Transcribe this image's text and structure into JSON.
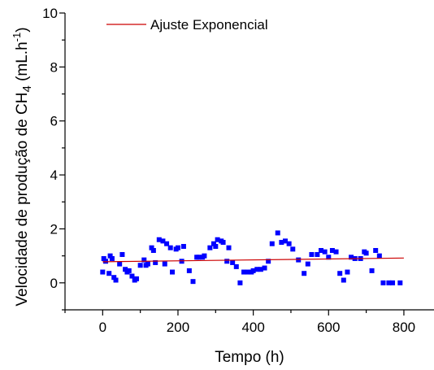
{
  "chart_data": {
    "type": "scatter",
    "xlabel": "Tempo (h)",
    "ylabel": {
      "prefix": "Velocidade de produção de CH",
      "sub": "4",
      "unit": " (mL.h",
      "sup": "-1",
      "close": ")"
    },
    "xlim": [
      -100,
      880
    ],
    "ylim": [
      -1,
      10
    ],
    "x_ticks": [
      0,
      200,
      400,
      600,
      800
    ],
    "y_ticks": [
      0,
      2,
      4,
      6,
      8,
      10
    ],
    "grid": false,
    "legend": {
      "position": "top-left",
      "entries": [
        "Ajuste Exponencial"
      ]
    },
    "colors": {
      "points": "#0000ff",
      "fit": "#cc0000",
      "axis": "#000000"
    },
    "series": [
      {
        "kind": "points",
        "x": [
          0,
          3,
          8,
          17,
          20,
          25,
          30,
          35,
          45,
          52,
          60,
          65,
          70,
          78,
          85,
          90,
          100,
          110,
          115,
          120,
          130,
          135,
          140,
          150,
          160,
          165,
          170,
          180,
          185,
          195,
          200,
          210,
          215,
          230,
          240,
          250,
          255,
          265,
          270,
          285,
          295,
          300,
          305,
          315,
          320,
          330,
          335,
          345,
          355,
          365,
          375,
          385,
          395,
          400,
          410,
          420,
          430,
          440,
          450,
          465,
          475,
          485,
          495,
          505,
          520,
          535,
          545,
          555,
          570,
          580,
          590,
          600,
          610,
          620,
          630,
          640,
          650,
          660,
          670,
          685,
          695,
          700,
          715,
          725,
          735,
          745,
          760,
          770,
          790
        ],
        "y": [
          0.4,
          0.9,
          0.8,
          0.35,
          1.0,
          0.9,
          0.2,
          0.1,
          0.7,
          1.05,
          0.5,
          0.4,
          0.45,
          0.25,
          0.1,
          0.15,
          0.65,
          0.85,
          0.65,
          0.7,
          1.3,
          1.2,
          0.75,
          1.6,
          1.55,
          0.7,
          1.45,
          1.3,
          0.4,
          1.25,
          1.3,
          0.8,
          1.35,
          0.45,
          0.05,
          0.95,
          0.95,
          0.95,
          1.0,
          1.3,
          1.45,
          1.35,
          1.6,
          1.55,
          1.5,
          0.8,
          1.3,
          0.75,
          0.6,
          0.0,
          0.4,
          0.4,
          0.4,
          0.45,
          0.5,
          0.5,
          0.55,
          0.8,
          1.45,
          1.85,
          1.5,
          1.55,
          1.45,
          1.25,
          0.85,
          0.35,
          0.7,
          1.05,
          1.05,
          1.2,
          1.15,
          0.95,
          1.2,
          1.15,
          0.35,
          0.1,
          0.4,
          0.95,
          0.9,
          0.9,
          1.15,
          1.1,
          0.45,
          1.2,
          1.0,
          0.0,
          0.0,
          0.0,
          0.0
        ]
      },
      {
        "kind": "line",
        "name": "Ajuste Exponencial",
        "x": [
          0,
          800
        ],
        "y": [
          0.78,
          0.92
        ]
      }
    ]
  }
}
